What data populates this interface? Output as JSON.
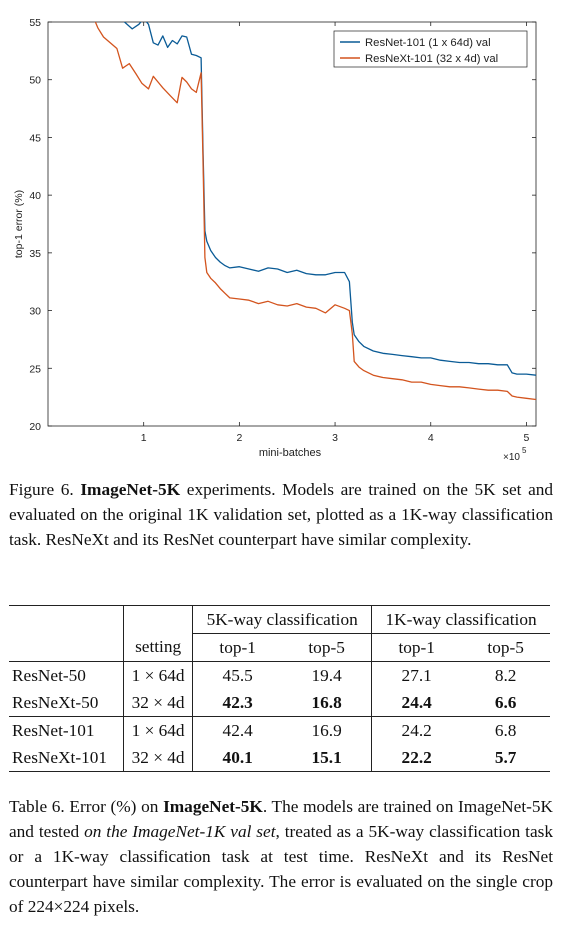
{
  "chart_data": {
    "type": "line",
    "xlabel": "mini-batches",
    "ylabel": "top-1 error (%)",
    "x_multiplier": "×10",
    "x_multiplier_exp": "5",
    "xlim": [
      0,
      5.1
    ],
    "ylim": [
      20,
      55
    ],
    "x_ticks": [
      1,
      2,
      3,
      4,
      5
    ],
    "y_ticks": [
      20,
      25,
      30,
      35,
      40,
      45,
      50,
      55
    ],
    "legend_position": "top-right",
    "grid": false,
    "series": [
      {
        "name": "ResNet-101 (1 x 64d) val",
        "color": "#0a5b96",
        "x": [
          0.47,
          0.55,
          0.62,
          0.7,
          0.8,
          0.88,
          0.95,
          1.0,
          1.05,
          1.1,
          1.15,
          1.2,
          1.25,
          1.3,
          1.35,
          1.4,
          1.45,
          1.5,
          1.55,
          1.6,
          1.62,
          1.64,
          1.66,
          1.7,
          1.75,
          1.8,
          1.85,
          1.9,
          2.0,
          2.1,
          2.2,
          2.3,
          2.4,
          2.5,
          2.6,
          2.7,
          2.8,
          2.9,
          3.0,
          3.1,
          3.15,
          3.18,
          3.2,
          3.25,
          3.3,
          3.4,
          3.5,
          3.6,
          3.7,
          3.8,
          3.9,
          4.0,
          4.1,
          4.2,
          4.3,
          4.4,
          4.5,
          4.6,
          4.7,
          4.8,
          4.85,
          4.9,
          5.0,
          5.1
        ],
        "y": [
          57.5,
          56.5,
          56.0,
          55.5,
          55.0,
          54.4,
          54.8,
          55.3,
          54.8,
          53.2,
          53.0,
          53.8,
          52.8,
          53.4,
          53.1,
          53.8,
          53.7,
          52.2,
          52.1,
          51.9,
          44.0,
          36.9,
          36.0,
          35.2,
          34.6,
          34.2,
          33.9,
          33.7,
          33.8,
          33.6,
          33.4,
          33.7,
          33.6,
          33.3,
          33.5,
          33.2,
          33.1,
          33.1,
          33.3,
          33.3,
          32.5,
          29.0,
          27.9,
          27.3,
          26.9,
          26.5,
          26.3,
          26.2,
          26.1,
          26.0,
          25.9,
          25.9,
          25.7,
          25.6,
          25.5,
          25.5,
          25.4,
          25.4,
          25.3,
          25.3,
          24.6,
          24.5,
          24.5,
          24.4
        ]
      },
      {
        "name": "ResNeXt-101 (32 x 4d) val",
        "color": "#d3541e",
        "x": [
          0.47,
          0.52,
          0.58,
          0.65,
          0.72,
          0.78,
          0.85,
          0.92,
          0.98,
          1.05,
          1.1,
          1.15,
          1.2,
          1.28,
          1.35,
          1.4,
          1.45,
          1.5,
          1.55,
          1.6,
          1.62,
          1.64,
          1.66,
          1.7,
          1.75,
          1.8,
          1.85,
          1.9,
          2.0,
          2.1,
          2.2,
          2.3,
          2.4,
          2.5,
          2.6,
          2.7,
          2.8,
          2.9,
          3.0,
          3.1,
          3.15,
          3.18,
          3.2,
          3.25,
          3.3,
          3.4,
          3.5,
          3.6,
          3.7,
          3.8,
          3.9,
          4.0,
          4.1,
          4.2,
          4.3,
          4.4,
          4.5,
          4.6,
          4.7,
          4.8,
          4.85,
          4.9,
          5.0,
          5.1
        ],
        "y": [
          55.5,
          54.5,
          53.7,
          53.2,
          52.7,
          51.0,
          51.4,
          50.5,
          49.7,
          49.2,
          50.3,
          49.8,
          49.3,
          48.6,
          48.0,
          50.2,
          49.8,
          49.2,
          48.9,
          50.6,
          43.0,
          34.6,
          33.3,
          32.8,
          32.4,
          31.9,
          31.5,
          31.1,
          31.0,
          30.9,
          30.6,
          30.8,
          30.5,
          30.4,
          30.6,
          30.3,
          30.2,
          29.8,
          30.5,
          30.2,
          30.0,
          28.0,
          25.6,
          25.1,
          24.8,
          24.4,
          24.2,
          24.1,
          24.0,
          23.8,
          23.8,
          23.6,
          23.5,
          23.4,
          23.4,
          23.3,
          23.2,
          23.1,
          23.1,
          23.0,
          22.6,
          22.5,
          22.4,
          22.3
        ]
      }
    ]
  },
  "figure_caption": {
    "prefix": "Figure 6.",
    "bold": "ImageNet-5K",
    "rest": "experiments. Models are trained on the 5K set and evaluated on the original 1K validation set, plotted as a 1K-way classification task. ResNeXt and its ResNet counterpart have similar complexity."
  },
  "table": {
    "group_headers": [
      "5K-way classification",
      "1K-way classification"
    ],
    "setting_header": "setting",
    "sub_headers": [
      "top-1",
      "top-5",
      "top-1",
      "top-5"
    ],
    "rows": [
      {
        "model": "ResNet-50",
        "setting": "1 × 64d",
        "values": [
          "45.5",
          "19.4",
          "27.1",
          "8.2"
        ],
        "bold": false
      },
      {
        "model": "ResNeXt-50",
        "setting": "32 × 4d",
        "values": [
          "42.3",
          "16.8",
          "24.4",
          "6.6"
        ],
        "bold": true
      },
      {
        "model": "ResNet-101",
        "setting": "1 × 64d",
        "values": [
          "42.4",
          "16.9",
          "24.2",
          "6.8"
        ],
        "bold": false
      },
      {
        "model": "ResNeXt-101",
        "setting": "32 × 4d",
        "values": [
          "40.1",
          "15.1",
          "22.2",
          "5.7"
        ],
        "bold": true
      }
    ]
  },
  "table_caption": {
    "prefix": "Table 6. Error (%) on",
    "bold": "ImageNet-5K",
    "part2": ". The models are trained on ImageNet-5K and tested",
    "italic": "on the ImageNet-1K val set",
    "part3": ", treated as a 5K-way classification task or a 1K-way classification task at test time. ResNeXt and its ResNet counterpart have similar complexity. The error is evaluated on the single crop of 224×224 pixels."
  }
}
